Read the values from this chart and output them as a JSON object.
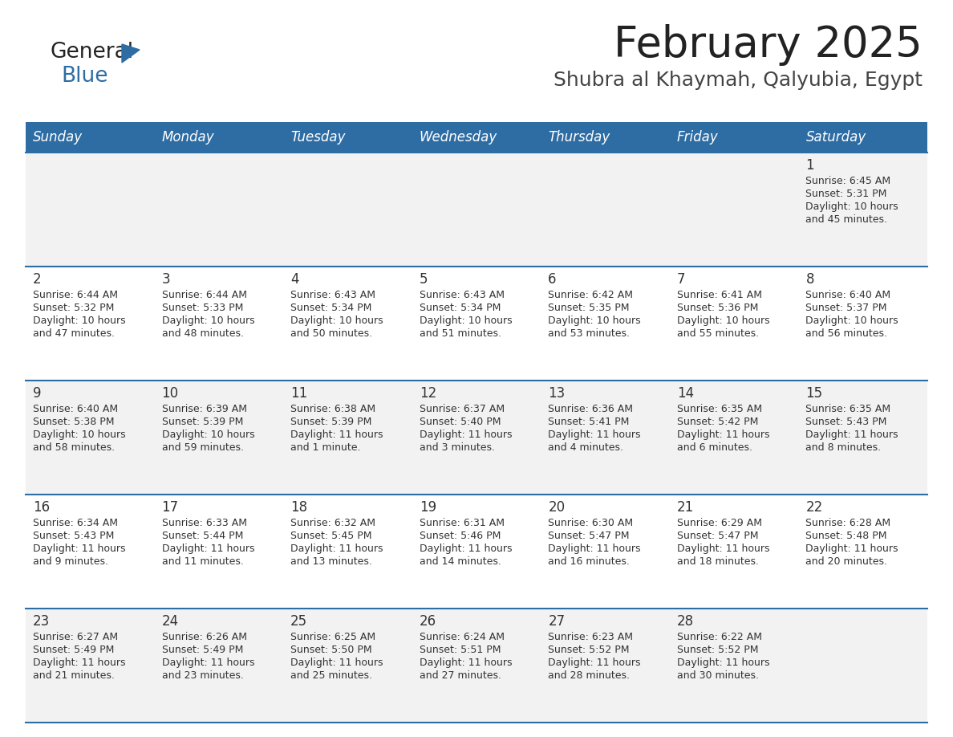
{
  "title": "February 2025",
  "subtitle": "Shubra al Khaymah, Qalyubia, Egypt",
  "header_bg": "#2E6DA4",
  "header_text": "#FFFFFF",
  "cell_bg_odd": "#F2F2F2",
  "cell_bg_even": "#FFFFFF",
  "border_color": "#2E6DA4",
  "text_color": "#333333",
  "days_of_week": [
    "Sunday",
    "Monday",
    "Tuesday",
    "Wednesday",
    "Thursday",
    "Friday",
    "Saturday"
  ],
  "calendar": [
    [
      {
        "day": null,
        "sunrise": null,
        "sunset": null,
        "daylight_line1": null,
        "daylight_line2": null
      },
      {
        "day": null,
        "sunrise": null,
        "sunset": null,
        "daylight_line1": null,
        "daylight_line2": null
      },
      {
        "day": null,
        "sunrise": null,
        "sunset": null,
        "daylight_line1": null,
        "daylight_line2": null
      },
      {
        "day": null,
        "sunrise": null,
        "sunset": null,
        "daylight_line1": null,
        "daylight_line2": null
      },
      {
        "day": null,
        "sunrise": null,
        "sunset": null,
        "daylight_line1": null,
        "daylight_line2": null
      },
      {
        "day": null,
        "sunrise": null,
        "sunset": null,
        "daylight_line1": null,
        "daylight_line2": null
      },
      {
        "day": "1",
        "sunrise": "Sunrise: 6:45 AM",
        "sunset": "Sunset: 5:31 PM",
        "daylight_line1": "Daylight: 10 hours",
        "daylight_line2": "and 45 minutes."
      }
    ],
    [
      {
        "day": "2",
        "sunrise": "Sunrise: 6:44 AM",
        "sunset": "Sunset: 5:32 PM",
        "daylight_line1": "Daylight: 10 hours",
        "daylight_line2": "and 47 minutes."
      },
      {
        "day": "3",
        "sunrise": "Sunrise: 6:44 AM",
        "sunset": "Sunset: 5:33 PM",
        "daylight_line1": "Daylight: 10 hours",
        "daylight_line2": "and 48 minutes."
      },
      {
        "day": "4",
        "sunrise": "Sunrise: 6:43 AM",
        "sunset": "Sunset: 5:34 PM",
        "daylight_line1": "Daylight: 10 hours",
        "daylight_line2": "and 50 minutes."
      },
      {
        "day": "5",
        "sunrise": "Sunrise: 6:43 AM",
        "sunset": "Sunset: 5:34 PM",
        "daylight_line1": "Daylight: 10 hours",
        "daylight_line2": "and 51 minutes."
      },
      {
        "day": "6",
        "sunrise": "Sunrise: 6:42 AM",
        "sunset": "Sunset: 5:35 PM",
        "daylight_line1": "Daylight: 10 hours",
        "daylight_line2": "and 53 minutes."
      },
      {
        "day": "7",
        "sunrise": "Sunrise: 6:41 AM",
        "sunset": "Sunset: 5:36 PM",
        "daylight_line1": "Daylight: 10 hours",
        "daylight_line2": "and 55 minutes."
      },
      {
        "day": "8",
        "sunrise": "Sunrise: 6:40 AM",
        "sunset": "Sunset: 5:37 PM",
        "daylight_line1": "Daylight: 10 hours",
        "daylight_line2": "and 56 minutes."
      }
    ],
    [
      {
        "day": "9",
        "sunrise": "Sunrise: 6:40 AM",
        "sunset": "Sunset: 5:38 PM",
        "daylight_line1": "Daylight: 10 hours",
        "daylight_line2": "and 58 minutes."
      },
      {
        "day": "10",
        "sunrise": "Sunrise: 6:39 AM",
        "sunset": "Sunset: 5:39 PM",
        "daylight_line1": "Daylight: 10 hours",
        "daylight_line2": "and 59 minutes."
      },
      {
        "day": "11",
        "sunrise": "Sunrise: 6:38 AM",
        "sunset": "Sunset: 5:39 PM",
        "daylight_line1": "Daylight: 11 hours",
        "daylight_line2": "and 1 minute."
      },
      {
        "day": "12",
        "sunrise": "Sunrise: 6:37 AM",
        "sunset": "Sunset: 5:40 PM",
        "daylight_line1": "Daylight: 11 hours",
        "daylight_line2": "and 3 minutes."
      },
      {
        "day": "13",
        "sunrise": "Sunrise: 6:36 AM",
        "sunset": "Sunset: 5:41 PM",
        "daylight_line1": "Daylight: 11 hours",
        "daylight_line2": "and 4 minutes."
      },
      {
        "day": "14",
        "sunrise": "Sunrise: 6:35 AM",
        "sunset": "Sunset: 5:42 PM",
        "daylight_line1": "Daylight: 11 hours",
        "daylight_line2": "and 6 minutes."
      },
      {
        "day": "15",
        "sunrise": "Sunrise: 6:35 AM",
        "sunset": "Sunset: 5:43 PM",
        "daylight_line1": "Daylight: 11 hours",
        "daylight_line2": "and 8 minutes."
      }
    ],
    [
      {
        "day": "16",
        "sunrise": "Sunrise: 6:34 AM",
        "sunset": "Sunset: 5:43 PM",
        "daylight_line1": "Daylight: 11 hours",
        "daylight_line2": "and 9 minutes."
      },
      {
        "day": "17",
        "sunrise": "Sunrise: 6:33 AM",
        "sunset": "Sunset: 5:44 PM",
        "daylight_line1": "Daylight: 11 hours",
        "daylight_line2": "and 11 minutes."
      },
      {
        "day": "18",
        "sunrise": "Sunrise: 6:32 AM",
        "sunset": "Sunset: 5:45 PM",
        "daylight_line1": "Daylight: 11 hours",
        "daylight_line2": "and 13 minutes."
      },
      {
        "day": "19",
        "sunrise": "Sunrise: 6:31 AM",
        "sunset": "Sunset: 5:46 PM",
        "daylight_line1": "Daylight: 11 hours",
        "daylight_line2": "and 14 minutes."
      },
      {
        "day": "20",
        "sunrise": "Sunrise: 6:30 AM",
        "sunset": "Sunset: 5:47 PM",
        "daylight_line1": "Daylight: 11 hours",
        "daylight_line2": "and 16 minutes."
      },
      {
        "day": "21",
        "sunrise": "Sunrise: 6:29 AM",
        "sunset": "Sunset: 5:47 PM",
        "daylight_line1": "Daylight: 11 hours",
        "daylight_line2": "and 18 minutes."
      },
      {
        "day": "22",
        "sunrise": "Sunrise: 6:28 AM",
        "sunset": "Sunset: 5:48 PM",
        "daylight_line1": "Daylight: 11 hours",
        "daylight_line2": "and 20 minutes."
      }
    ],
    [
      {
        "day": "23",
        "sunrise": "Sunrise: 6:27 AM",
        "sunset": "Sunset: 5:49 PM",
        "daylight_line1": "Daylight: 11 hours",
        "daylight_line2": "and 21 minutes."
      },
      {
        "day": "24",
        "sunrise": "Sunrise: 6:26 AM",
        "sunset": "Sunset: 5:49 PM",
        "daylight_line1": "Daylight: 11 hours",
        "daylight_line2": "and 23 minutes."
      },
      {
        "day": "25",
        "sunrise": "Sunrise: 6:25 AM",
        "sunset": "Sunset: 5:50 PM",
        "daylight_line1": "Daylight: 11 hours",
        "daylight_line2": "and 25 minutes."
      },
      {
        "day": "26",
        "sunrise": "Sunrise: 6:24 AM",
        "sunset": "Sunset: 5:51 PM",
        "daylight_line1": "Daylight: 11 hours",
        "daylight_line2": "and 27 minutes."
      },
      {
        "day": "27",
        "sunrise": "Sunrise: 6:23 AM",
        "sunset": "Sunset: 5:52 PM",
        "daylight_line1": "Daylight: 11 hours",
        "daylight_line2": "and 28 minutes."
      },
      {
        "day": "28",
        "sunrise": "Sunrise: 6:22 AM",
        "sunset": "Sunset: 5:52 PM",
        "daylight_line1": "Daylight: 11 hours",
        "daylight_line2": "and 30 minutes."
      },
      {
        "day": null,
        "sunrise": null,
        "sunset": null,
        "daylight_line1": null,
        "daylight_line2": null
      }
    ]
  ]
}
